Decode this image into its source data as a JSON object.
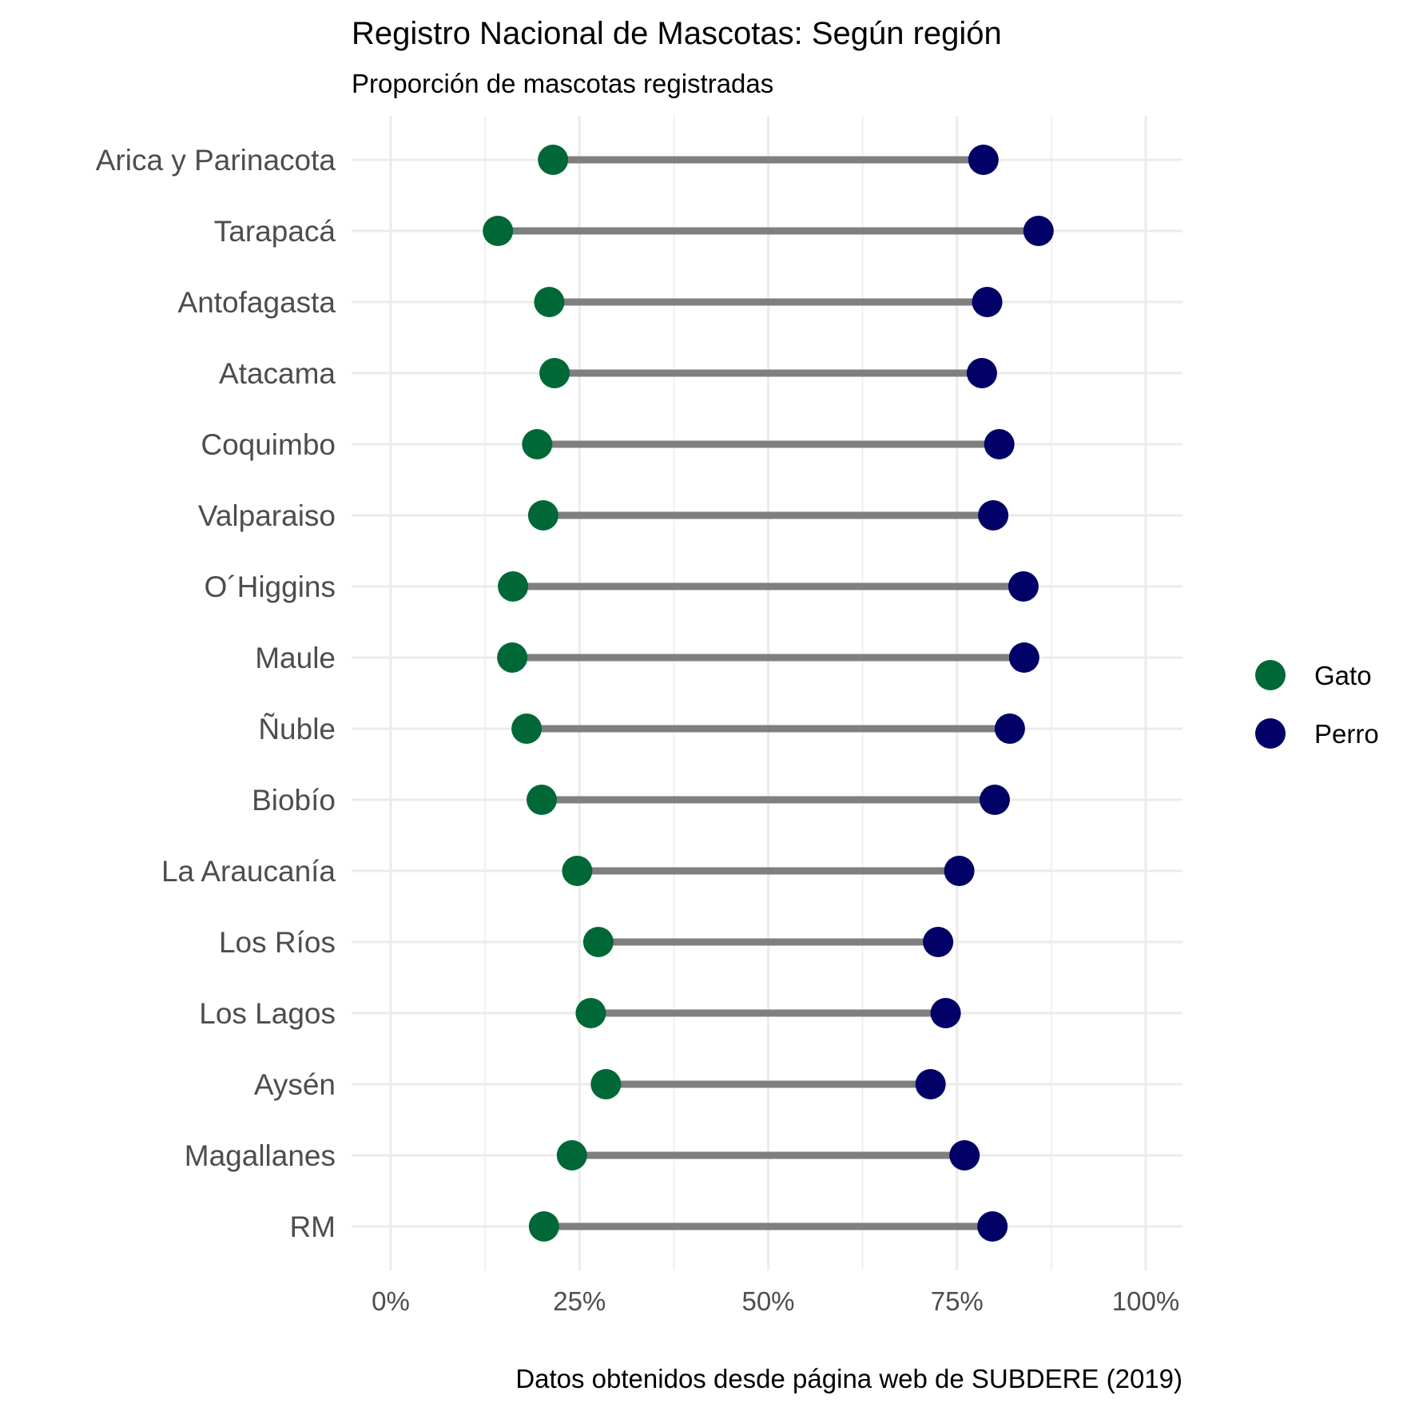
{
  "chart_data": {
    "type": "dumbbell",
    "title": "Registro Nacional de Mascotas: Según región",
    "subtitle": "Proporción de mascotas registradas",
    "caption": "Datos obtenidos desde página web de SUBDERE (2019)",
    "xlabel": "",
    "ylabel": "",
    "xlim": [
      0,
      1
    ],
    "x_ticks": [
      0,
      0.25,
      0.5,
      0.75,
      1
    ],
    "x_tick_labels": [
      "0%",
      "25%",
      "50%",
      "75%",
      "100%"
    ],
    "grid": true,
    "legend_position": "right",
    "categories": [
      "Arica y Parinacota",
      "Tarapacá",
      "Antofagasta",
      "Atacama",
      "Coquimbo",
      "Valparaiso",
      "O´Higgins",
      "Maule",
      "Ñuble",
      "Biobío",
      "La Araucanía",
      "Los Ríos",
      "Los Lagos",
      "Aysén",
      "Magallanes",
      "RM"
    ],
    "series": [
      {
        "name": "Gato",
        "color": "#006837",
        "values": [
          0.215,
          0.142,
          0.21,
          0.217,
          0.194,
          0.202,
          0.162,
          0.161,
          0.18,
          0.2,
          0.247,
          0.275,
          0.265,
          0.285,
          0.24,
          0.203
        ]
      },
      {
        "name": "Perro",
        "color": "#000066",
        "values": [
          0.785,
          0.858,
          0.79,
          0.783,
          0.806,
          0.798,
          0.838,
          0.839,
          0.82,
          0.8,
          0.753,
          0.725,
          0.735,
          0.715,
          0.76,
          0.797
        ]
      }
    ],
    "segment_color": "#7f7f7f",
    "grid_color": "#ebebeb"
  }
}
